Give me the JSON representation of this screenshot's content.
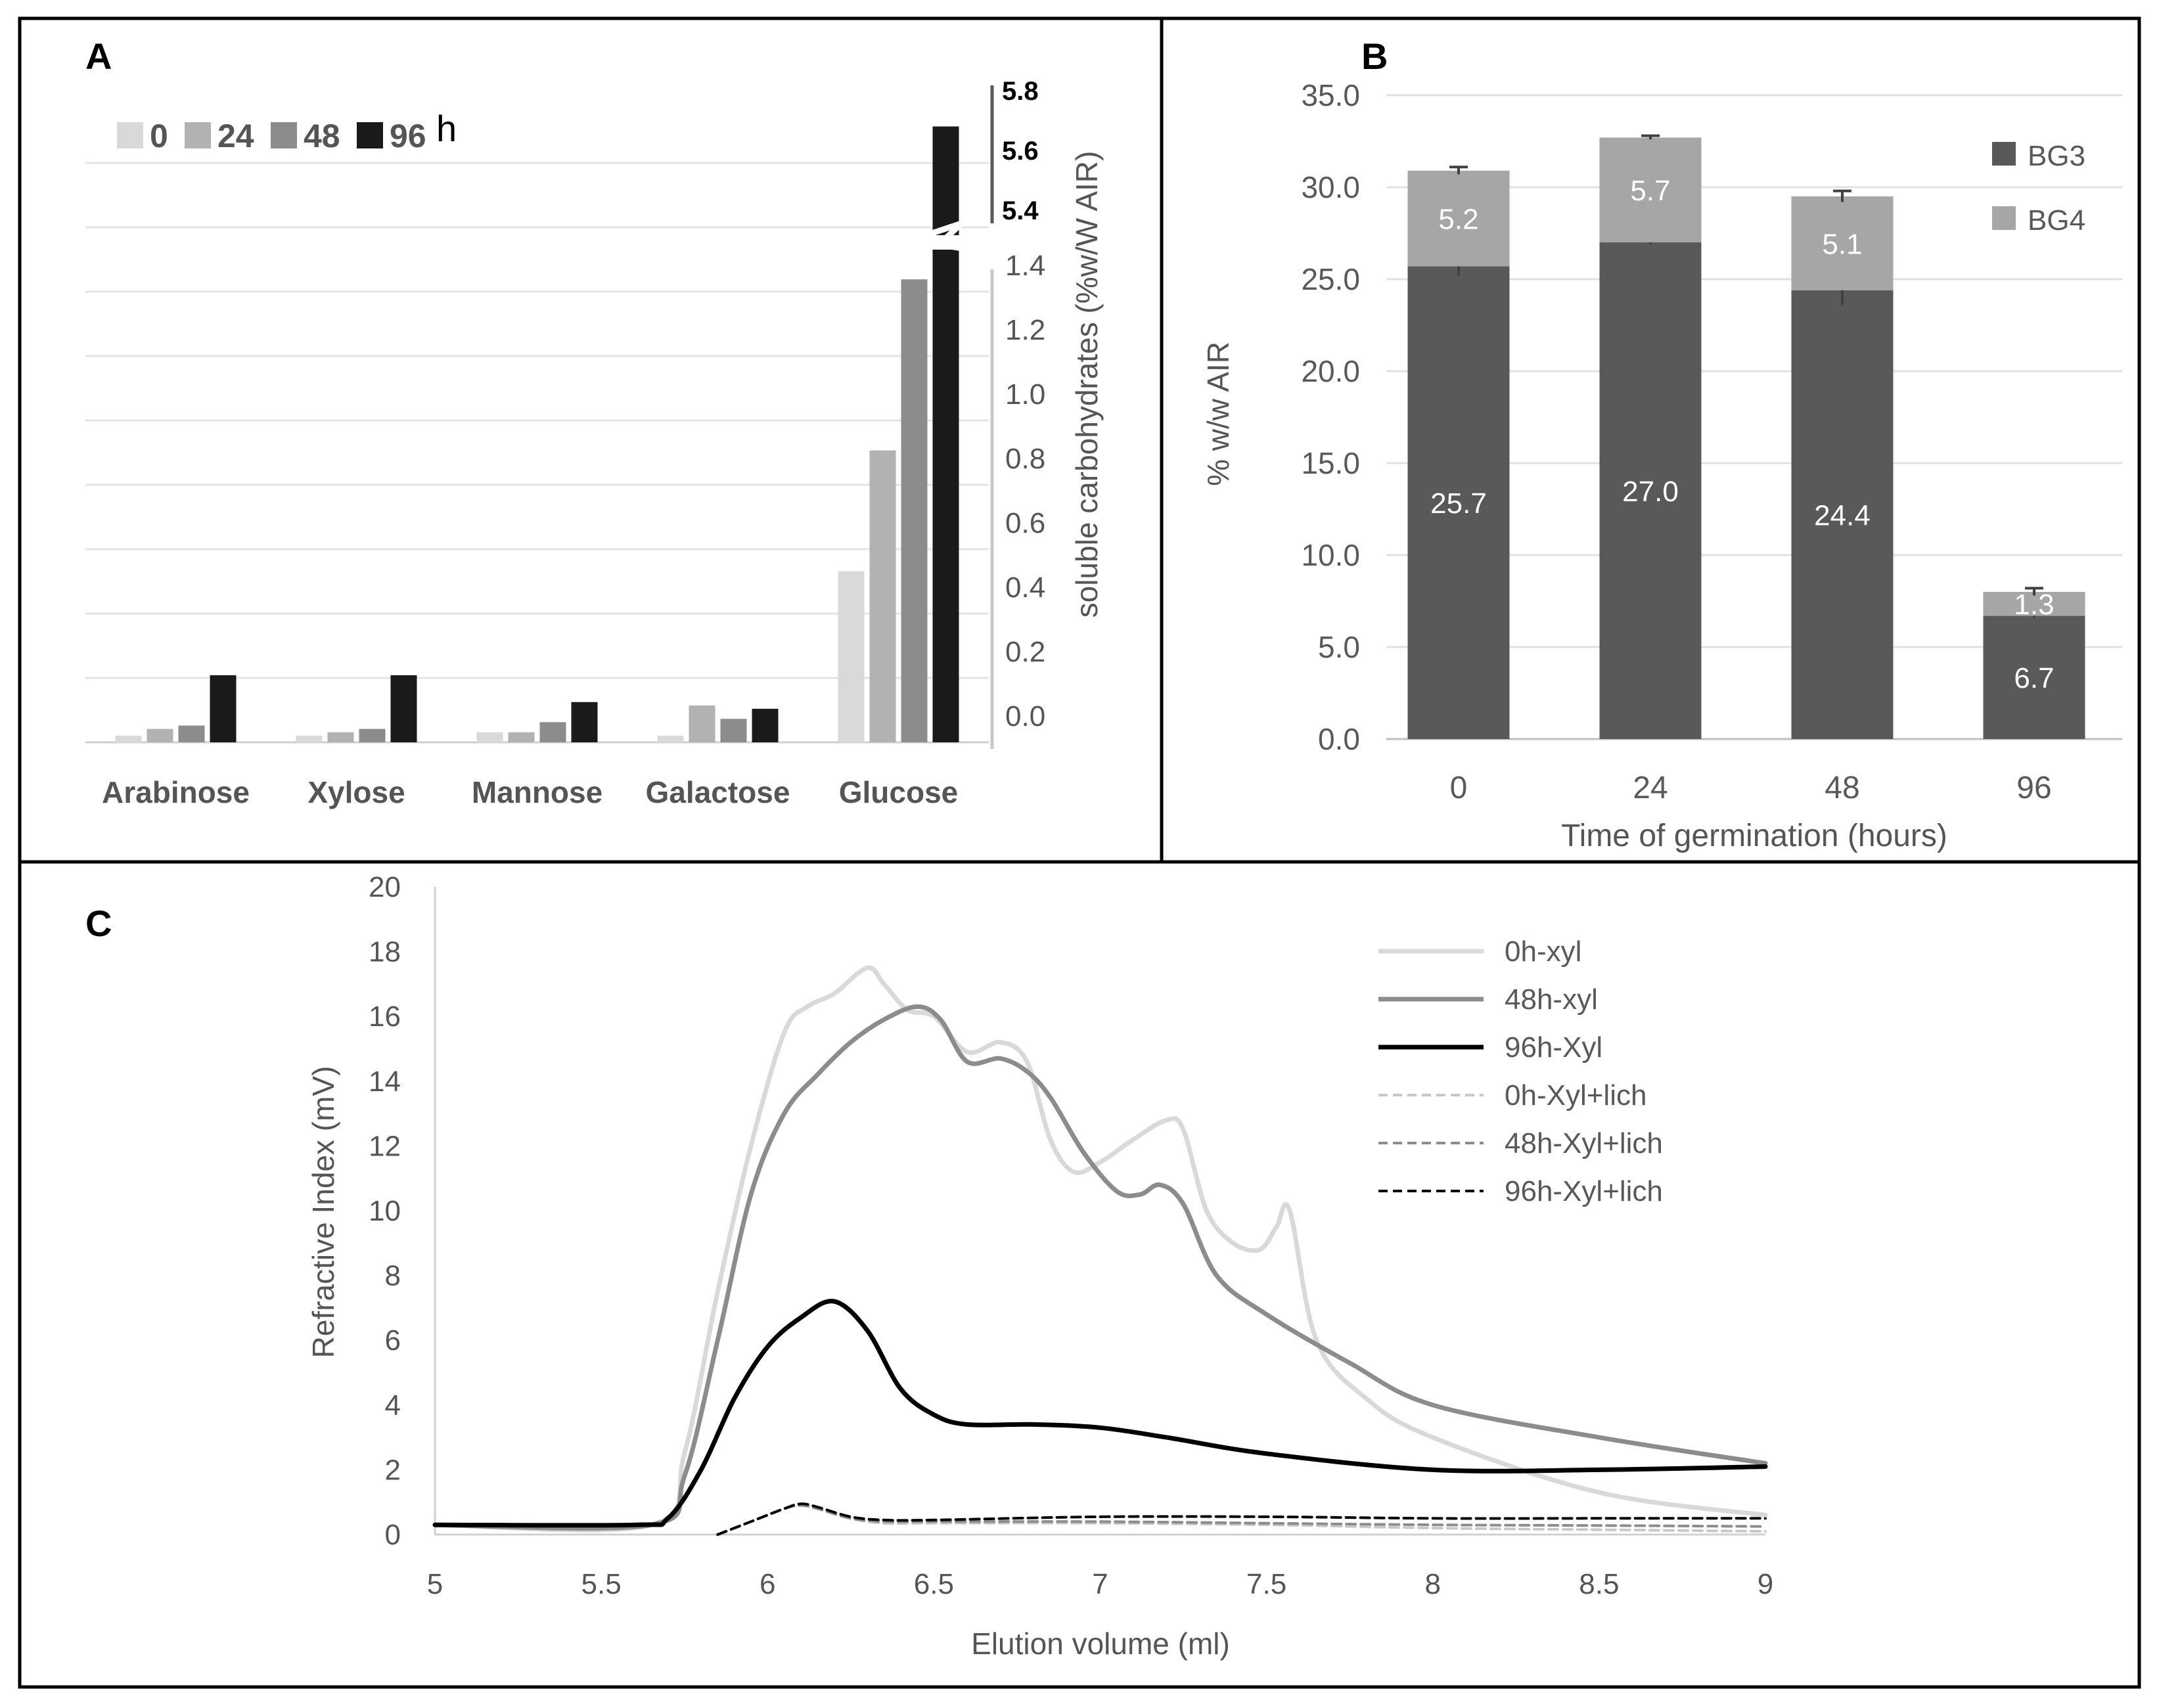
{
  "chart_data": [
    {
      "panel": "A",
      "type": "bar",
      "ylabel": "soluble carbohydrates (%w/W AIR)",
      "legend_unit": "h",
      "categories": [
        "Arabinose",
        "Xylose",
        "Mannose",
        "Galactose",
        "Glucose"
      ],
      "series": [
        {
          "name": "0",
          "color": "#d9d9d9",
          "values": [
            0.02,
            0.02,
            0.03,
            0.02,
            0.51
          ]
        },
        {
          "name": "24",
          "color": "#b2b2b2",
          "values": [
            0.04,
            0.03,
            0.03,
            0.11,
            0.87
          ]
        },
        {
          "name": "48",
          "color": "#8c8c8c",
          "values": [
            0.05,
            0.04,
            0.06,
            0.07,
            1.38
          ]
        },
        {
          "name": "96",
          "color": "#1a1a1a",
          "values": [
            0.2,
            0.2,
            0.12,
            0.1,
            5.7
          ]
        }
      ],
      "y_ticks_lower": [
        "0.0",
        "0.2",
        "0.4",
        "0.6",
        "0.8",
        "1.0",
        "1.2",
        "1.4"
      ],
      "y_ticks_upper": [
        "5.4",
        "5.6",
        "5.8"
      ],
      "ylim_lower": [
        0,
        1.4
      ],
      "ylim_upper": [
        5.4,
        5.8
      ],
      "axis_break": true,
      "grid": true,
      "legend_position": "top-left"
    },
    {
      "panel": "B",
      "type": "bar",
      "stacked": true,
      "xlabel": "Time of germination (hours)",
      "ylabel": "% w/w AIR",
      "categories": [
        "0",
        "24",
        "48",
        "96"
      ],
      "series": [
        {
          "name": "BG3",
          "color": "#595959",
          "values": [
            25.7,
            27.0,
            24.4,
            6.7
          ],
          "labels": [
            "25.7",
            "27.0",
            "24.4",
            "6.7"
          ],
          "errors": [
            0.5,
            0.1,
            0.8,
            0.1
          ]
        },
        {
          "name": "BG4",
          "color": "#a6a6a6",
          "values": [
            5.2,
            5.7,
            5.1,
            1.3
          ],
          "labels": [
            "5.2",
            "5.7",
            "5.1",
            "1.3"
          ],
          "errors": [
            0.2,
            0.1,
            0.3,
            0.2
          ]
        }
      ],
      "y_ticks": [
        "0.0",
        "5.0",
        "10.0",
        "15.0",
        "20.0",
        "25.0",
        "30.0",
        "35.0"
      ],
      "ylim": [
        0,
        35
      ],
      "grid": true,
      "legend_position": "right"
    },
    {
      "panel": "C",
      "type": "line",
      "xlabel": "Elution volume (ml)",
      "ylabel": "Refractive Index (mV)",
      "xlim": [
        5,
        9
      ],
      "ylim": [
        0,
        20
      ],
      "x_ticks": [
        "5",
        "5.5",
        "6",
        "6.5",
        "7",
        "7.5",
        "8",
        "8.5",
        "9"
      ],
      "y_ticks": [
        "0",
        "2",
        "4",
        "6",
        "8",
        "10",
        "12",
        "14",
        "16",
        "18",
        "20"
      ],
      "grid": false,
      "legend_position": "top-right",
      "series": [
        {
          "name": "0h-xyl",
          "color": "#d9d9d9",
          "dash": false,
          "x": [
            5.0,
            5.65,
            5.75,
            5.85,
            5.95,
            6.05,
            6.12,
            6.2,
            6.3,
            6.35,
            6.42,
            6.5,
            6.6,
            6.7,
            6.78,
            6.85,
            6.92,
            7.0,
            7.1,
            7.2,
            7.25,
            7.32,
            7.4,
            7.48,
            7.53,
            7.57,
            7.65,
            7.8,
            8.0,
            8.5,
            9.0
          ],
          "y": [
            0.3,
            0.3,
            2.5,
            7.5,
            12.0,
            15.5,
            16.3,
            16.7,
            17.5,
            17.0,
            16.2,
            16.0,
            14.9,
            15.2,
            14.6,
            12.2,
            11.2,
            11.5,
            12.2,
            12.8,
            12.5,
            10.0,
            9.0,
            8.8,
            9.5,
            10.0,
            6.0,
            4.2,
            3.0,
            1.3,
            0.6
          ]
        },
        {
          "name": "48h-xyl",
          "color": "#8c8c8c",
          "dash": false,
          "x": [
            5.0,
            5.65,
            5.75,
            5.85,
            5.95,
            6.05,
            6.15,
            6.25,
            6.35,
            6.45,
            6.52,
            6.6,
            6.7,
            6.78,
            6.85,
            6.95,
            7.05,
            7.12,
            7.18,
            7.25,
            7.35,
            7.5,
            7.75,
            8.0,
            8.5,
            9.0
          ],
          "y": [
            0.3,
            0.3,
            1.8,
            6.0,
            10.5,
            13.0,
            14.2,
            15.2,
            15.9,
            16.3,
            15.9,
            14.6,
            14.7,
            14.3,
            13.5,
            11.8,
            10.6,
            10.5,
            10.8,
            10.2,
            8.0,
            6.8,
            5.3,
            4.0,
            3.0,
            2.2
          ]
        },
        {
          "name": "96h-Xyl",
          "color": "#000000",
          "dash": false,
          "x": [
            5.0,
            5.6,
            5.7,
            5.8,
            5.9,
            6.0,
            6.1,
            6.2,
            6.3,
            6.4,
            6.5,
            6.6,
            6.8,
            7.0,
            7.2,
            7.5,
            8.0,
            8.5,
            9.0
          ],
          "y": [
            0.3,
            0.3,
            0.5,
            2.0,
            4.2,
            5.8,
            6.7,
            7.2,
            6.3,
            4.5,
            3.7,
            3.4,
            3.4,
            3.3,
            3.0,
            2.5,
            2.0,
            2.0,
            2.1
          ]
        },
        {
          "name": "0h-Xyl+lich",
          "color": "#c8c8c8",
          "dash": true,
          "x": [
            5.85,
            5.95,
            6.05,
            6.1,
            6.15,
            6.25,
            6.35,
            6.5,
            7.0,
            7.5,
            8.0,
            8.5,
            9.0
          ],
          "y": [
            0.0,
            0.4,
            0.8,
            0.9,
            0.8,
            0.5,
            0.35,
            0.35,
            0.35,
            0.3,
            0.2,
            0.15,
            0.1
          ]
        },
        {
          "name": "48h-Xyl+lich",
          "color": "#8c8c8c",
          "dash": true,
          "x": [
            5.85,
            5.95,
            6.05,
            6.1,
            6.15,
            6.25,
            6.35,
            6.5,
            7.0,
            7.5,
            8.0,
            8.5,
            9.0
          ],
          "y": [
            0.0,
            0.4,
            0.8,
            0.9,
            0.8,
            0.5,
            0.4,
            0.4,
            0.4,
            0.35,
            0.3,
            0.28,
            0.25
          ]
        },
        {
          "name": "96h-Xyl+lich",
          "color": "#000000",
          "dash": true,
          "x": [
            5.85,
            5.95,
            6.05,
            6.1,
            6.15,
            6.25,
            6.35,
            6.5,
            7.0,
            7.5,
            8.0,
            8.5,
            9.0
          ],
          "y": [
            0.0,
            0.4,
            0.8,
            0.95,
            0.85,
            0.55,
            0.45,
            0.45,
            0.55,
            0.55,
            0.5,
            0.5,
            0.5
          ]
        }
      ]
    }
  ],
  "labels": {
    "panel_a": "A",
    "panel_b": "B",
    "panel_c": "C"
  }
}
